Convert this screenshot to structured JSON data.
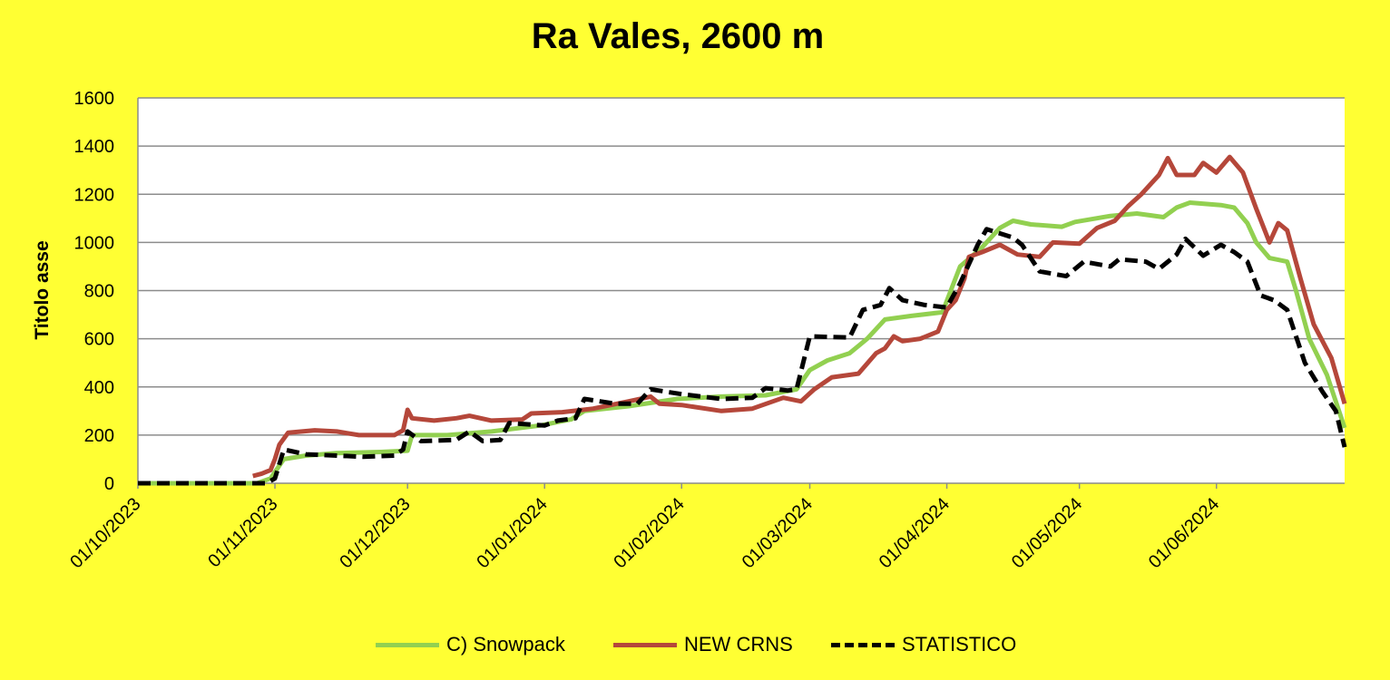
{
  "chart_data": {
    "type": "line",
    "title": "Ra Vales, 2600 m",
    "xlabel": "",
    "ylabel": "Titolo asse",
    "ylim": [
      0,
      1600
    ],
    "yticks": [
      0,
      200,
      400,
      600,
      800,
      1000,
      1200,
      1400,
      1600
    ],
    "xlim": [
      "2023-10-01",
      "2024-06-30"
    ],
    "xticks": [
      {
        "date": "2023-10-01",
        "label": "01/10/2023"
      },
      {
        "date": "2023-11-01",
        "label": "01/11/2023"
      },
      {
        "date": "2023-12-01",
        "label": "01/12/2023"
      },
      {
        "date": "2024-01-01",
        "label": "01/01/2024"
      },
      {
        "date": "2024-02-01",
        "label": "01/02/2024"
      },
      {
        "date": "2024-03-01",
        "label": "01/03/2024"
      },
      {
        "date": "2024-04-01",
        "label": "01/04/2024"
      },
      {
        "date": "2024-05-01",
        "label": "01/05/2024"
      },
      {
        "date": "2024-06-01",
        "label": "01/06/2024"
      }
    ],
    "grid": true,
    "legend_position": "bottom",
    "series": [
      {
        "name": "C) Snowpack",
        "color": "#92D050",
        "style": "solid",
        "points": [
          [
            "2023-10-01",
            0
          ],
          [
            "2023-10-28",
            0
          ],
          [
            "2023-10-31",
            20
          ],
          [
            "2023-11-03",
            100
          ],
          [
            "2023-11-08",
            115
          ],
          [
            "2023-11-15",
            125
          ],
          [
            "2023-11-25",
            130
          ],
          [
            "2023-12-01",
            135
          ],
          [
            "2023-12-02",
            200
          ],
          [
            "2023-12-10",
            200
          ],
          [
            "2023-12-20",
            215
          ],
          [
            "2023-12-31",
            240
          ],
          [
            "2024-01-07",
            265
          ],
          [
            "2024-01-10",
            300
          ],
          [
            "2024-01-20",
            320
          ],
          [
            "2024-01-31",
            350
          ],
          [
            "2024-02-10",
            360
          ],
          [
            "2024-02-20",
            365
          ],
          [
            "2024-02-27",
            390
          ],
          [
            "2024-03-01",
            470
          ],
          [
            "2024-03-05",
            510
          ],
          [
            "2024-03-10",
            540
          ],
          [
            "2024-03-14",
            600
          ],
          [
            "2024-03-18",
            680
          ],
          [
            "2024-03-24",
            695
          ],
          [
            "2024-03-31",
            710
          ],
          [
            "2024-04-04",
            900
          ],
          [
            "2024-04-09",
            980
          ],
          [
            "2024-04-13",
            1060
          ],
          [
            "2024-04-16",
            1090
          ],
          [
            "2024-04-20",
            1075
          ],
          [
            "2024-04-27",
            1065
          ],
          [
            "2024-04-30",
            1085
          ],
          [
            "2024-05-08",
            1110
          ],
          [
            "2024-05-14",
            1120
          ],
          [
            "2024-05-20",
            1105
          ],
          [
            "2024-05-23",
            1145
          ],
          [
            "2024-05-26",
            1165
          ],
          [
            "2024-06-02",
            1155
          ],
          [
            "2024-06-05",
            1145
          ],
          [
            "2024-06-08",
            1080
          ],
          [
            "2024-06-10",
            1000
          ],
          [
            "2024-06-13",
            935
          ],
          [
            "2024-06-17",
            920
          ],
          [
            "2024-06-19",
            800
          ],
          [
            "2024-06-22",
            600
          ],
          [
            "2024-06-26",
            450
          ],
          [
            "2024-06-30",
            230
          ]
        ]
      },
      {
        "name": "NEW CRNS",
        "color": "#B5473A",
        "style": "solid",
        "points": [
          [
            "2023-10-27",
            30
          ],
          [
            "2023-10-29",
            40
          ],
          [
            "2023-10-31",
            55
          ],
          [
            "2023-11-01",
            100
          ],
          [
            "2023-11-02",
            160
          ],
          [
            "2023-11-04",
            210
          ],
          [
            "2023-11-10",
            220
          ],
          [
            "2023-11-15",
            215
          ],
          [
            "2023-11-20",
            200
          ],
          [
            "2023-11-28",
            200
          ],
          [
            "2023-11-30",
            220
          ],
          [
            "2023-12-01",
            305
          ],
          [
            "2023-12-02",
            270
          ],
          [
            "2023-12-07",
            260
          ],
          [
            "2023-12-12",
            270
          ],
          [
            "2023-12-15",
            280
          ],
          [
            "2023-12-20",
            260
          ],
          [
            "2023-12-27",
            265
          ],
          [
            "2023-12-29",
            290
          ],
          [
            "2024-01-05",
            295
          ],
          [
            "2024-01-12",
            310
          ],
          [
            "2024-01-20",
            340
          ],
          [
            "2024-01-25",
            360
          ],
          [
            "2024-01-27",
            330
          ],
          [
            "2024-02-01",
            325
          ],
          [
            "2024-02-10",
            300
          ],
          [
            "2024-02-17",
            310
          ],
          [
            "2024-02-24",
            355
          ],
          [
            "2024-02-28",
            340
          ],
          [
            "2024-03-02",
            390
          ],
          [
            "2024-03-06",
            440
          ],
          [
            "2024-03-12",
            455
          ],
          [
            "2024-03-16",
            540
          ],
          [
            "2024-03-18",
            560
          ],
          [
            "2024-03-20",
            610
          ],
          [
            "2024-03-22",
            590
          ],
          [
            "2024-03-26",
            600
          ],
          [
            "2024-03-30",
            630
          ],
          [
            "2024-04-01",
            720
          ],
          [
            "2024-04-03",
            760
          ],
          [
            "2024-04-05",
            850
          ],
          [
            "2024-04-06",
            940
          ],
          [
            "2024-04-09",
            960
          ],
          [
            "2024-04-13",
            990
          ],
          [
            "2024-04-17",
            950
          ],
          [
            "2024-04-22",
            940
          ],
          [
            "2024-04-25",
            1000
          ],
          [
            "2024-05-01",
            995
          ],
          [
            "2024-05-05",
            1060
          ],
          [
            "2024-05-09",
            1090
          ],
          [
            "2024-05-12",
            1150
          ],
          [
            "2024-05-15",
            1200
          ],
          [
            "2024-05-19",
            1280
          ],
          [
            "2024-05-21",
            1350
          ],
          [
            "2024-05-23",
            1280
          ],
          [
            "2024-05-27",
            1280
          ],
          [
            "2024-05-29",
            1330
          ],
          [
            "2024-06-01",
            1290
          ],
          [
            "2024-06-04",
            1355
          ],
          [
            "2024-06-07",
            1290
          ],
          [
            "2024-06-10",
            1140
          ],
          [
            "2024-06-13",
            1000
          ],
          [
            "2024-06-15",
            1080
          ],
          [
            "2024-06-17",
            1050
          ],
          [
            "2024-06-20",
            850
          ],
          [
            "2024-06-23",
            660
          ],
          [
            "2024-06-27",
            520
          ],
          [
            "2024-06-30",
            330
          ]
        ]
      },
      {
        "name": "STATISTICO",
        "color": "#000000",
        "style": "dashed",
        "points": [
          [
            "2023-10-01",
            0
          ],
          [
            "2023-10-30",
            0
          ],
          [
            "2023-11-01",
            20
          ],
          [
            "2023-11-03",
            140
          ],
          [
            "2023-11-08",
            120
          ],
          [
            "2023-11-15",
            115
          ],
          [
            "2023-11-21",
            110
          ],
          [
            "2023-11-28",
            115
          ],
          [
            "2023-11-30",
            140
          ],
          [
            "2023-12-01",
            215
          ],
          [
            "2023-12-04",
            175
          ],
          [
            "2023-12-12",
            180
          ],
          [
            "2023-12-15",
            215
          ],
          [
            "2023-12-18",
            175
          ],
          [
            "2023-12-22",
            180
          ],
          [
            "2023-12-24",
            250
          ],
          [
            "2024-01-01",
            240
          ],
          [
            "2024-01-04",
            260
          ],
          [
            "2024-01-08",
            270
          ],
          [
            "2024-01-10",
            350
          ],
          [
            "2024-01-17",
            330
          ],
          [
            "2024-01-22",
            330
          ],
          [
            "2024-01-25",
            390
          ],
          [
            "2024-02-01",
            370
          ],
          [
            "2024-02-10",
            350
          ],
          [
            "2024-02-17",
            355
          ],
          [
            "2024-02-20",
            395
          ],
          [
            "2024-02-25",
            385
          ],
          [
            "2024-02-27",
            390
          ],
          [
            "2024-03-01",
            610
          ],
          [
            "2024-03-10",
            605
          ],
          [
            "2024-03-13",
            720
          ],
          [
            "2024-03-17",
            740
          ],
          [
            "2024-03-19",
            810
          ],
          [
            "2024-03-22",
            760
          ],
          [
            "2024-03-27",
            740
          ],
          [
            "2024-04-01",
            730
          ],
          [
            "2024-04-04",
            830
          ],
          [
            "2024-04-08",
            990
          ],
          [
            "2024-04-10",
            1055
          ],
          [
            "2024-04-16",
            1020
          ],
          [
            "2024-04-18",
            990
          ],
          [
            "2024-04-22",
            880
          ],
          [
            "2024-04-28",
            860
          ],
          [
            "2024-05-02",
            920
          ],
          [
            "2024-05-08",
            900
          ],
          [
            "2024-05-10",
            930
          ],
          [
            "2024-05-16",
            920
          ],
          [
            "2024-05-19",
            890
          ],
          [
            "2024-05-23",
            950
          ],
          [
            "2024-05-25",
            1015
          ],
          [
            "2024-05-29",
            945
          ],
          [
            "2024-06-02",
            990
          ],
          [
            "2024-06-05",
            960
          ],
          [
            "2024-06-08",
            920
          ],
          [
            "2024-06-11",
            780
          ],
          [
            "2024-06-14",
            760
          ],
          [
            "2024-06-17",
            720
          ],
          [
            "2024-06-21",
            500
          ],
          [
            "2024-06-25",
            380
          ],
          [
            "2024-06-28",
            300
          ],
          [
            "2024-06-30",
            150
          ]
        ]
      }
    ]
  }
}
